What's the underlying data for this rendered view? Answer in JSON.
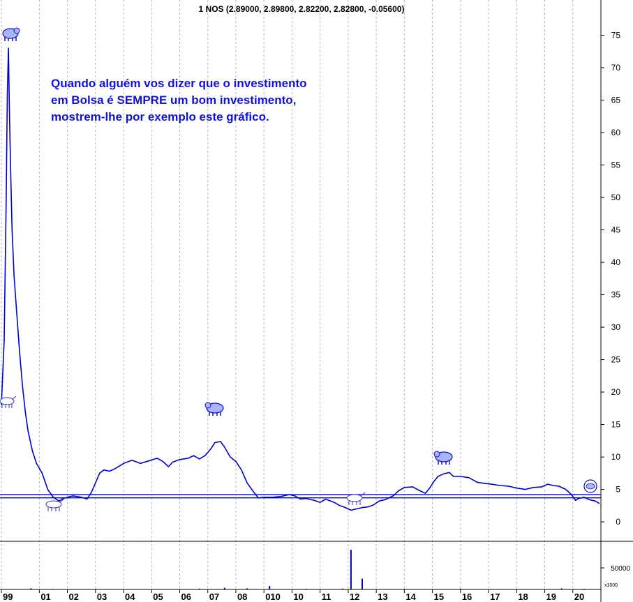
{
  "chart_data": {
    "type": "line",
    "title": "1 NOS (2.89000, 2.89800, 2.82200, 2.82800, -0.05600)",
    "annotation": [
      "Quando alguém vos dizer que o investimento",
      "em Bolsa é SEMPRE um bom investimento,",
      "mostrem-lhe por exemplo este gráfico."
    ],
    "ylim": [
      -3,
      80
    ],
    "yticks": [
      0,
      5,
      10,
      15,
      20,
      25,
      30,
      35,
      40,
      45,
      50,
      55,
      60,
      65,
      70,
      75
    ],
    "xlim": [
      1999.6,
      2021.0
    ],
    "xticks": [
      {
        "label": "99",
        "x": 1999.65
      },
      {
        "label": "01",
        "x": 2001.0
      },
      {
        "label": "02",
        "x": 2002.0
      },
      {
        "label": "03",
        "x": 2003.0
      },
      {
        "label": "04",
        "x": 2004.0
      },
      {
        "label": "05",
        "x": 2005.0
      },
      {
        "label": "06",
        "x": 2006.0
      },
      {
        "label": "07",
        "x": 2007.0
      },
      {
        "label": "08",
        "x": 2008.0
      },
      {
        "label": "010",
        "x": 2009.0
      },
      {
        "label": "10",
        "x": 2010.0
      },
      {
        "label": "11",
        "x": 2011.0
      },
      {
        "label": "12",
        "x": 2012.0
      },
      {
        "label": "13",
        "x": 2013.0
      },
      {
        "label": "14",
        "x": 2014.0
      },
      {
        "label": "15",
        "x": 2015.0
      },
      {
        "label": "16",
        "x": 2016.0
      },
      {
        "label": "17",
        "x": 2017.0
      },
      {
        "label": "18",
        "x": 2018.0
      },
      {
        "label": "19",
        "x": 2019.0
      },
      {
        "label": "20",
        "x": 2020.0
      }
    ],
    "series": [
      {
        "color": "#0000cc",
        "points": [
          [
            1999.65,
            18
          ],
          [
            1999.75,
            28
          ],
          [
            1999.82,
            50
          ],
          [
            1999.86,
            66
          ],
          [
            1999.9,
            73
          ],
          [
            1999.94,
            62
          ],
          [
            1999.98,
            54
          ],
          [
            2000.03,
            45
          ],
          [
            2000.1,
            38
          ],
          [
            2000.2,
            32
          ],
          [
            2000.3,
            26
          ],
          [
            2000.4,
            21
          ],
          [
            2000.5,
            17
          ],
          [
            2000.6,
            14
          ],
          [
            2000.75,
            11
          ],
          [
            2000.9,
            9
          ],
          [
            2001.1,
            7.5
          ],
          [
            2001.3,
            5
          ],
          [
            2001.5,
            3.8
          ],
          [
            2001.7,
            3.2
          ],
          [
            2001.85,
            3.6
          ],
          [
            2002.0,
            3.8
          ],
          [
            2002.2,
            4.0
          ],
          [
            2002.5,
            3.8
          ],
          [
            2002.7,
            3.5
          ],
          [
            2002.85,
            4.5
          ],
          [
            2003.0,
            6.0
          ],
          [
            2003.15,
            7.5
          ],
          [
            2003.3,
            8.0
          ],
          [
            2003.5,
            7.8
          ],
          [
            2003.7,
            8.2
          ],
          [
            2004.0,
            9.0
          ],
          [
            2004.3,
            9.5
          ],
          [
            2004.6,
            9.0
          ],
          [
            2004.9,
            9.4
          ],
          [
            2005.2,
            9.8
          ],
          [
            2005.4,
            9.3
          ],
          [
            2005.6,
            8.5
          ],
          [
            2005.75,
            9.2
          ],
          [
            2006.0,
            9.6
          ],
          [
            2006.3,
            9.8
          ],
          [
            2006.5,
            10.2
          ],
          [
            2006.7,
            9.7
          ],
          [
            2006.9,
            10.2
          ],
          [
            2007.1,
            11.2
          ],
          [
            2007.25,
            12.2
          ],
          [
            2007.45,
            12.4
          ],
          [
            2007.6,
            11.5
          ],
          [
            2007.8,
            10.0
          ],
          [
            2008.0,
            9.3
          ],
          [
            2008.2,
            8.0
          ],
          [
            2008.4,
            6.0
          ],
          [
            2008.6,
            4.8
          ],
          [
            2008.8,
            3.7
          ],
          [
            2009.0,
            3.8
          ],
          [
            2009.3,
            3.8
          ],
          [
            2009.6,
            3.9
          ],
          [
            2009.9,
            4.2
          ],
          [
            2010.1,
            4.0
          ],
          [
            2010.3,
            3.5
          ],
          [
            2010.5,
            3.6
          ],
          [
            2010.8,
            3.3
          ],
          [
            2011.0,
            3.0
          ],
          [
            2011.2,
            3.5
          ],
          [
            2011.5,
            3.0
          ],
          [
            2011.7,
            2.5
          ],
          [
            2011.9,
            2.2
          ],
          [
            2012.1,
            1.8
          ],
          [
            2012.3,
            2.0
          ],
          [
            2012.5,
            2.2
          ],
          [
            2012.7,
            2.3
          ],
          [
            2012.9,
            2.6
          ],
          [
            2013.1,
            3.2
          ],
          [
            2013.3,
            3.4
          ],
          [
            2013.6,
            4.0
          ],
          [
            2013.8,
            4.8
          ],
          [
            2014.0,
            5.3
          ],
          [
            2014.3,
            5.4
          ],
          [
            2014.55,
            4.8
          ],
          [
            2014.75,
            4.4
          ],
          [
            2014.9,
            5.2
          ],
          [
            2015.05,
            6.2
          ],
          [
            2015.2,
            7.0
          ],
          [
            2015.4,
            7.4
          ],
          [
            2015.6,
            7.6
          ],
          [
            2015.75,
            7.0
          ],
          [
            2016.0,
            7.0
          ],
          [
            2016.3,
            6.8
          ],
          [
            2016.6,
            6.1
          ],
          [
            2016.9,
            5.9
          ],
          [
            2017.1,
            5.8
          ],
          [
            2017.4,
            5.6
          ],
          [
            2017.7,
            5.5
          ],
          [
            2018.0,
            5.2
          ],
          [
            2018.3,
            5.0
          ],
          [
            2018.6,
            5.3
          ],
          [
            2018.9,
            5.4
          ],
          [
            2019.1,
            5.8
          ],
          [
            2019.3,
            5.6
          ],
          [
            2019.5,
            5.5
          ],
          [
            2019.75,
            5.0
          ],
          [
            2019.95,
            4.2
          ],
          [
            2020.1,
            3.3
          ],
          [
            2020.2,
            3.6
          ],
          [
            2020.4,
            3.8
          ],
          [
            2020.6,
            3.4
          ],
          [
            2020.8,
            3.2
          ],
          [
            2020.95,
            2.83
          ]
        ]
      }
    ],
    "horizontal_lines": [
      3.7,
      4.2
    ],
    "volume": {
      "label": "x1000",
      "yticks": [
        50000
      ],
      "ylim": [
        0,
        110000
      ],
      "bars": [
        [
          2000.7,
          2500
        ],
        [
          2001.5,
          1200
        ],
        [
          2003.0,
          1500
        ],
        [
          2006.7,
          1800
        ],
        [
          2007.6,
          4000
        ],
        [
          2008.4,
          2500
        ],
        [
          2009.2,
          8000
        ],
        [
          2010.5,
          1500
        ],
        [
          2011.8,
          2000
        ],
        [
          2012.1,
          92000
        ],
        [
          2012.5,
          25000
        ],
        [
          2014.0,
          1500
        ],
        [
          2016.0,
          1800
        ],
        [
          2018.0,
          1200
        ],
        [
          2019.6,
          2500
        ],
        [
          2020.4,
          1500
        ]
      ]
    }
  }
}
